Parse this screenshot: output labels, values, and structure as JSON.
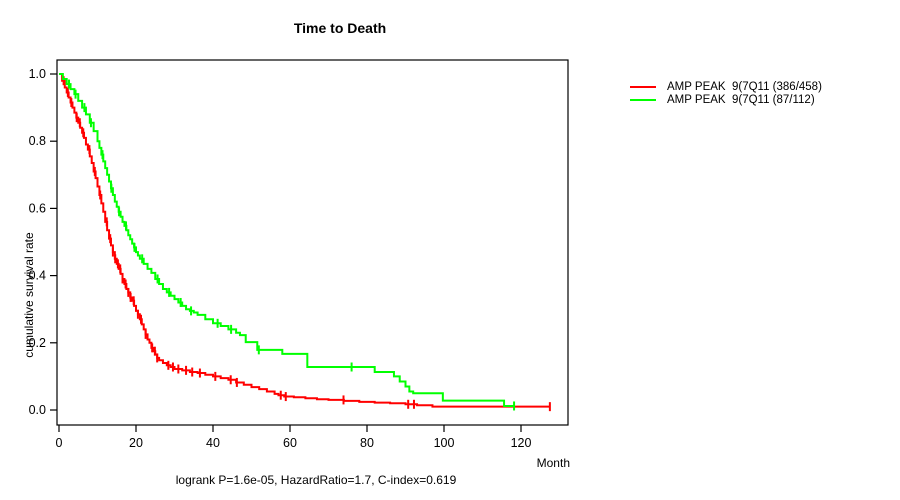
{
  "title": "Time to Death",
  "footer_stats": "logrank P=1.6e-05, HazardRatio=1.7, C-index=0.619",
  "axes": {
    "x_label": "Month",
    "y_label": "cumulative survival rate",
    "x_tick_labels": [
      "0",
      "20",
      "40",
      "60",
      "80",
      "100",
      "120"
    ],
    "y_tick_labels": [
      "0.0",
      "0.2",
      "0.4",
      "0.6",
      "0.8",
      "1.0"
    ]
  },
  "colors": {
    "series_red": "#ff0000",
    "series_green": "#00ff00",
    "axis": "#000000",
    "background": "#ffffff"
  },
  "chart_data": {
    "type": "line",
    "subtype": "kaplan_meier_step",
    "title": "Time to Death",
    "xlabel": "Month",
    "ylabel": "cumulative survival rate",
    "xlim": [
      0,
      133
    ],
    "ylim": [
      0,
      1
    ],
    "xticks": [
      0,
      20,
      40,
      60,
      80,
      100,
      120
    ],
    "yticks": [
      "0.0",
      "0.2",
      "0.4",
      "0.6",
      "0.8",
      "1.0"
    ],
    "grid": false,
    "legend_position": "right-outside",
    "annotation": "logrank P=1.6e-05, HazardRatio=1.7, C-index=0.619",
    "series": [
      {
        "name": "AMP PEAK  9(7Q11 (386/458)",
        "color": "#ff0000",
        "n": 458,
        "events": 386,
        "steps": [
          [
            0,
            1.0
          ],
          [
            0.8,
            0.98
          ],
          [
            1.5,
            0.96
          ],
          [
            2,
            0.945
          ],
          [
            2.5,
            0.93
          ],
          [
            3,
            0.915
          ],
          [
            3.5,
            0.9
          ],
          [
            4,
            0.885
          ],
          [
            4.5,
            0.87
          ],
          [
            5,
            0.855
          ],
          [
            5.5,
            0.84
          ],
          [
            6,
            0.825
          ],
          [
            6.5,
            0.81
          ],
          [
            7,
            0.79
          ],
          [
            7.5,
            0.775
          ],
          [
            8,
            0.755
          ],
          [
            8.5,
            0.735
          ],
          [
            9,
            0.71
          ],
          [
            9.5,
            0.69
          ],
          [
            10,
            0.665
          ],
          [
            10.5,
            0.64
          ],
          [
            11,
            0.615
          ],
          [
            11.5,
            0.59
          ],
          [
            12,
            0.56
          ],
          [
            12.5,
            0.535
          ],
          [
            13,
            0.51
          ],
          [
            13.5,
            0.49
          ],
          [
            14,
            0.47
          ],
          [
            14.5,
            0.45
          ],
          [
            15,
            0.435
          ],
          [
            15.5,
            0.42
          ],
          [
            16,
            0.405
          ],
          [
            16.5,
            0.39
          ],
          [
            17,
            0.375
          ],
          [
            17.5,
            0.36
          ],
          [
            18,
            0.35
          ],
          [
            18.5,
            0.335
          ],
          [
            19,
            0.325
          ],
          [
            19.5,
            0.31
          ],
          [
            20,
            0.295
          ],
          [
            20.5,
            0.285
          ],
          [
            21,
            0.27
          ],
          [
            21.5,
            0.255
          ],
          [
            22,
            0.24
          ],
          [
            22.5,
            0.225
          ],
          [
            23,
            0.21
          ],
          [
            23.5,
            0.2
          ],
          [
            24,
            0.185
          ],
          [
            24.5,
            0.175
          ],
          [
            25,
            0.165
          ],
          [
            25.5,
            0.155
          ],
          [
            26,
            0.148
          ],
          [
            27,
            0.14
          ],
          [
            28,
            0.133
          ],
          [
            29,
            0.128
          ],
          [
            30,
            0.122
          ],
          [
            32,
            0.118
          ],
          [
            34,
            0.113
          ],
          [
            36,
            0.11
          ],
          [
            38,
            0.105
          ],
          [
            40,
            0.1
          ],
          [
            42,
            0.095
          ],
          [
            44,
            0.09
          ],
          [
            46,
            0.082
          ],
          [
            48,
            0.075
          ],
          [
            50,
            0.068
          ],
          [
            52,
            0.062
          ],
          [
            54,
            0.055
          ],
          [
            56,
            0.048
          ],
          [
            57,
            0.044
          ],
          [
            58.5,
            0.04
          ],
          [
            61,
            0.038
          ],
          [
            64,
            0.035
          ],
          [
            67,
            0.032
          ],
          [
            70,
            0.03
          ],
          [
            74,
            0.027
          ],
          [
            78,
            0.024
          ],
          [
            82,
            0.022
          ],
          [
            86,
            0.02
          ],
          [
            90,
            0.017
          ],
          [
            93,
            0.014
          ],
          [
            97,
            0.01
          ],
          [
            127.5,
            0.01
          ]
        ],
        "censor_months": [
          1.2,
          2.3,
          3.2,
          4.6,
          5.4,
          6.3,
          7.9,
          9.3,
          10.7,
          12.4,
          13.3,
          14.0,
          14.6,
          15.3,
          15.9,
          16.5,
          17.3,
          18.0,
          18.6,
          19.4,
          20.5,
          21.3,
          22.5,
          24.2,
          24.9,
          25.5,
          28.4,
          29.6,
          31,
          33,
          34.6,
          36.6,
          40.6,
          44.6,
          46.2,
          57.6,
          58.9,
          73.9,
          90.7,
          92.2,
          127.5
        ]
      },
      {
        "name": "AMP PEAK  9(7Q11 (87/112)",
        "color": "#00ff00",
        "n": 112,
        "events": 87,
        "steps": [
          [
            0,
            1.0
          ],
          [
            1,
            0.985
          ],
          [
            2,
            0.97
          ],
          [
            3,
            0.955
          ],
          [
            4,
            0.94
          ],
          [
            5,
            0.92
          ],
          [
            6,
            0.9
          ],
          [
            7,
            0.88
          ],
          [
            8,
            0.855
          ],
          [
            9,
            0.83
          ],
          [
            10,
            0.8
          ],
          [
            10.5,
            0.78
          ],
          [
            11,
            0.76
          ],
          [
            11.5,
            0.74
          ],
          [
            12,
            0.72
          ],
          [
            12.5,
            0.7
          ],
          [
            13,
            0.68
          ],
          [
            13.5,
            0.66
          ],
          [
            14,
            0.64
          ],
          [
            14.5,
            0.62
          ],
          [
            15,
            0.605
          ],
          [
            15.5,
            0.59
          ],
          [
            16,
            0.575
          ],
          [
            16.5,
            0.56
          ],
          [
            17,
            0.548
          ],
          [
            17.5,
            0.535
          ],
          [
            18,
            0.52
          ],
          [
            18.5,
            0.508
          ],
          [
            19,
            0.495
          ],
          [
            19.5,
            0.484
          ],
          [
            20,
            0.47
          ],
          [
            20.5,
            0.46
          ],
          [
            21,
            0.45
          ],
          [
            22,
            0.435
          ],
          [
            23,
            0.42
          ],
          [
            24,
            0.408
          ],
          [
            25,
            0.39
          ],
          [
            26,
            0.375
          ],
          [
            27,
            0.36
          ],
          [
            28,
            0.35
          ],
          [
            29,
            0.34
          ],
          [
            30,
            0.33
          ],
          [
            31,
            0.32
          ],
          [
            32,
            0.31
          ],
          [
            33,
            0.3
          ],
          [
            34,
            0.295
          ],
          [
            35,
            0.29
          ],
          [
            36,
            0.283
          ],
          [
            38,
            0.27
          ],
          [
            40,
            0.258
          ],
          [
            42,
            0.25
          ],
          [
            44,
            0.24
          ],
          [
            46,
            0.23
          ],
          [
            47,
            0.223
          ],
          [
            48.5,
            0.202
          ],
          [
            51.5,
            0.179
          ],
          [
            58,
            0.167
          ],
          [
            64.5,
            0.128
          ],
          [
            82,
            0.113
          ],
          [
            87,
            0.1
          ],
          [
            88.5,
            0.085
          ],
          [
            90,
            0.07
          ],
          [
            91,
            0.055
          ],
          [
            92,
            0.05
          ],
          [
            99.7,
            0.028
          ],
          [
            115.6,
            0.012
          ],
          [
            118.2,
            0.012
          ]
        ],
        "censor_months": [
          2.6,
          4.3,
          6.6,
          8.3,
          11.3,
          13.6,
          15.6,
          17.4,
          19.6,
          21.6,
          25.6,
          28.6,
          31.6,
          34.3,
          41.2,
          44.7,
          51.9,
          76,
          118.2
        ]
      }
    ]
  }
}
